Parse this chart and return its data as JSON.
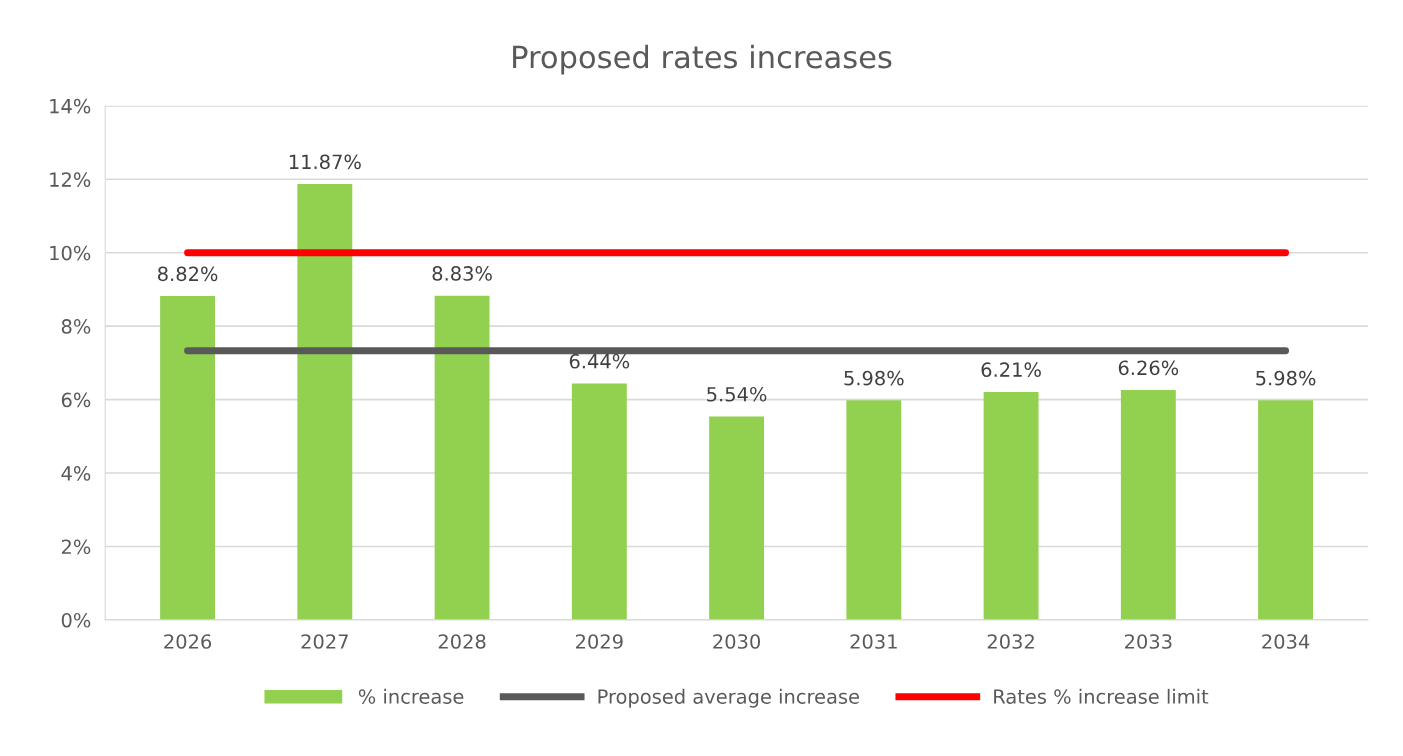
{
  "chart_data": {
    "type": "bar",
    "title": "Proposed rates increases",
    "categories": [
      "2026",
      "2027",
      "2028",
      "2029",
      "2030",
      "2031",
      "2032",
      "2033",
      "2034"
    ],
    "series": [
      {
        "name": "% increase",
        "color": "#92d050",
        "values": [
          8.82,
          11.87,
          8.83,
          6.44,
          5.54,
          5.98,
          6.21,
          6.26,
          5.98
        ],
        "value_labels": [
          "8.82%",
          "11.87%",
          "8.83%",
          "6.44%",
          "5.54%",
          "5.98%",
          "6.21%",
          "6.26%",
          "5.98%"
        ]
      },
      {
        "name": "Proposed average increase",
        "type": "line",
        "color": "#595959",
        "values": [
          7.33,
          7.33,
          7.33,
          7.33,
          7.33,
          7.33,
          7.33,
          7.33,
          7.33
        ]
      },
      {
        "name": "Rates % increase limit",
        "type": "line",
        "color": "#ff0000",
        "values": [
          10,
          10,
          10,
          10,
          10,
          10,
          10,
          10,
          10
        ]
      }
    ],
    "ylim": [
      0,
      14
    ],
    "yticks": [
      {
        "value": 0,
        "label": "0%"
      },
      {
        "value": 2,
        "label": "2%"
      },
      {
        "value": 4,
        "label": "4%"
      },
      {
        "value": 6,
        "label": "6%"
      },
      {
        "value": 8,
        "label": "8%"
      },
      {
        "value": 10,
        "label": "10%"
      },
      {
        "value": 12,
        "label": "12%"
      },
      {
        "value": 14,
        "label": "14%"
      }
    ],
    "grid": "y",
    "legend": "bottom"
  }
}
